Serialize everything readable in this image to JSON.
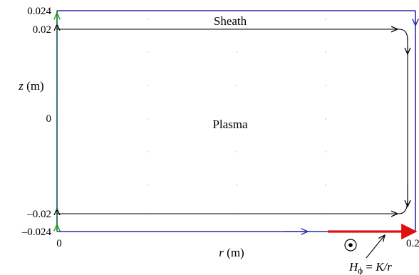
{
  "ticks": {
    "z_top": "0.024",
    "z_upper": "0.02",
    "z_zero": "0",
    "z_lower": "–0.02",
    "z_bottom": "–0.024",
    "r_zero": "0",
    "r_right": "0.2"
  },
  "axis_labels": {
    "z_var": "z",
    "z_unit": " (m)",
    "r_var": "r",
    "r_unit": " (m)"
  },
  "regions": {
    "sheath": "Sheath",
    "plasma": "Plasma"
  },
  "annotation": {
    "h": "H",
    "phi": "ϕ",
    "equals": " = ",
    "k_over_r": "K/r"
  },
  "colors": {
    "outer_boundary": "#2b2ba8",
    "inner_boundary": "#000000",
    "axis_boundary": "#1a9a1a",
    "source_segment": "#e01010",
    "dots": "#b0b0b0"
  }
}
